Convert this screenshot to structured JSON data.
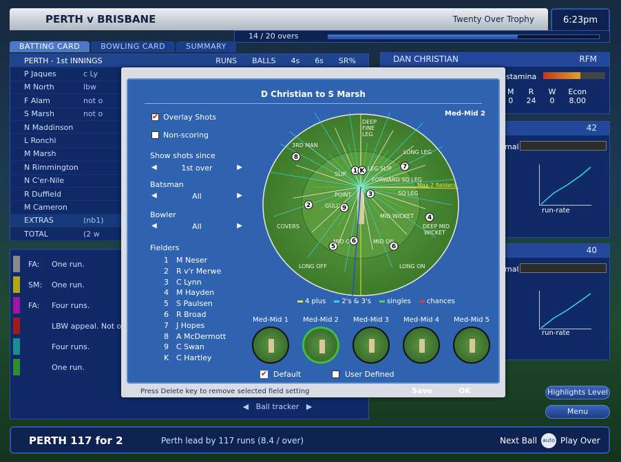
{
  "header": {
    "match": "PERTH v BRISBANE",
    "competition": "Twenty Over Trophy",
    "time": "6:23pm",
    "overs": "14 / 20 overs",
    "overs_progress": 0.7
  },
  "tabs": [
    {
      "label": "BATTING CARD"
    },
    {
      "label": "BOWLING CARD"
    },
    {
      "label": "SUMMARY"
    }
  ],
  "batting": {
    "innings": "PERTH - 1st INNINGS",
    "columns": [
      "RUNS",
      "BALLS",
      "4s",
      "6s",
      "SR%"
    ],
    "rows": [
      {
        "name": "P Jaques",
        "how": "c Ly"
      },
      {
        "name": "M North",
        "how": "lbw"
      },
      {
        "name": "F Alam",
        "how": "not o"
      },
      {
        "name": "S Marsh",
        "how": "not o"
      },
      {
        "name": "N Maddinson",
        "how": ""
      },
      {
        "name": "L Ronchi",
        "how": ""
      },
      {
        "name": "M Marsh",
        "how": ""
      },
      {
        "name": "N Rimmington",
        "how": ""
      },
      {
        "name": "N C'er-Nile",
        "how": ""
      },
      {
        "name": "R Duffield",
        "how": ""
      },
      {
        "name": "M Cameron",
        "how": ""
      }
    ],
    "extras_label": "EXTRAS",
    "extras_value": "(nb1)",
    "total_label": "TOTAL",
    "total_value": "(2 w"
  },
  "commentary": [
    {
      "who": "FA:",
      "text": "One run.",
      "color": "#8a8a8a"
    },
    {
      "who": "SM:",
      "text": "One run.",
      "color": "#b7a514"
    },
    {
      "who": "FA:",
      "text": "Four runs.",
      "color": "#a216a6"
    },
    {
      "who": "",
      "text": "LBW appeal. Not ou",
      "color": "#a21a1a"
    },
    {
      "who": "",
      "text": "Four runs.",
      "color": "#1a8f8f"
    },
    {
      "who": "",
      "text": "One run.",
      "color": "#2f8f2f"
    }
  ],
  "ball_tracker": "Ball tracker",
  "bowler_panel": {
    "name": "DAN CHRISTIAN",
    "style": "RFM",
    "stamina_label": "stamina",
    "cols": [
      "M",
      "R",
      "W",
      "Econ"
    ],
    "vals": [
      "0",
      "24",
      "0",
      "8.00"
    ]
  },
  "batter_panel_1": {
    "value": "42",
    "mode_label": "mal",
    "chart_label": "run-rate"
  },
  "batter_panel_2": {
    "value": "40",
    "mode_label": "mal",
    "chart_label": "run-rate"
  },
  "buttons": {
    "highlights": "Highlights Level",
    "menu": "Menu"
  },
  "footer": {
    "score": "PERTH  117 for 2",
    "lead": "Perth lead by 117 runs (8.4 / over)",
    "next_ball": "Next Ball",
    "auto": "auto",
    "play_over": "Play Over"
  },
  "dialog": {
    "title": "D Christian to S Marsh",
    "overlay_shots": "Overlay Shots",
    "non_scoring": "Non-scoring",
    "show_since_label": "Show shots since",
    "show_since_value": "1st over",
    "batsman_label": "Batsman",
    "batsman_value": "All",
    "bowler_label": "Bowler",
    "bowler_value": "All",
    "fielders_label": "Fielders",
    "fielders": [
      {
        "n": "1",
        "name": "M Neser"
      },
      {
        "n": "2",
        "name": "R v'r Merwe"
      },
      {
        "n": "3",
        "name": "C Lynn"
      },
      {
        "n": "4",
        "name": "M Hayden"
      },
      {
        "n": "5",
        "name": "S Paulsen"
      },
      {
        "n": "6",
        "name": "R Broad"
      },
      {
        "n": "7",
        "name": "J Hopes"
      },
      {
        "n": "8",
        "name": "A McDermott"
      },
      {
        "n": "9",
        "name": "C Swan"
      },
      {
        "n": "K",
        "name": "C Hartley"
      }
    ],
    "field_setting": "Med-Mid 2",
    "positions": [
      "DEEP FINE LEG",
      "3RD MAN",
      "LONG LEG",
      "SLIP",
      "LEG SLIP",
      "FORWARD SQ LEG",
      "SQ LEG",
      "POINT",
      "GULLY",
      "MID WICKET",
      "DEEP MID WICKET",
      "COVERS",
      "MID OFF",
      "MID ON",
      "LONG OFF",
      "LONG ON",
      "Max 2 fielders"
    ],
    "legend": [
      {
        "label": "4 plus",
        "color": "#e8e43a"
      },
      {
        "label": "2's & 3's",
        "color": "#3ad6e8"
      },
      {
        "label": "singles",
        "color": "#3ee05a"
      },
      {
        "label": "chances",
        "color": "#e03a3a"
      }
    ],
    "presets": [
      "Med-Mid 1",
      "Med-Mid 2",
      "Med-Mid 3",
      "Med-Mid 4",
      "Med-Mid 5"
    ],
    "default_label": "Default",
    "user_defined_label": "User Defined",
    "footer_hint": "Press Delete key to remove selected field setting",
    "save": "Save",
    "ok": "OK"
  }
}
